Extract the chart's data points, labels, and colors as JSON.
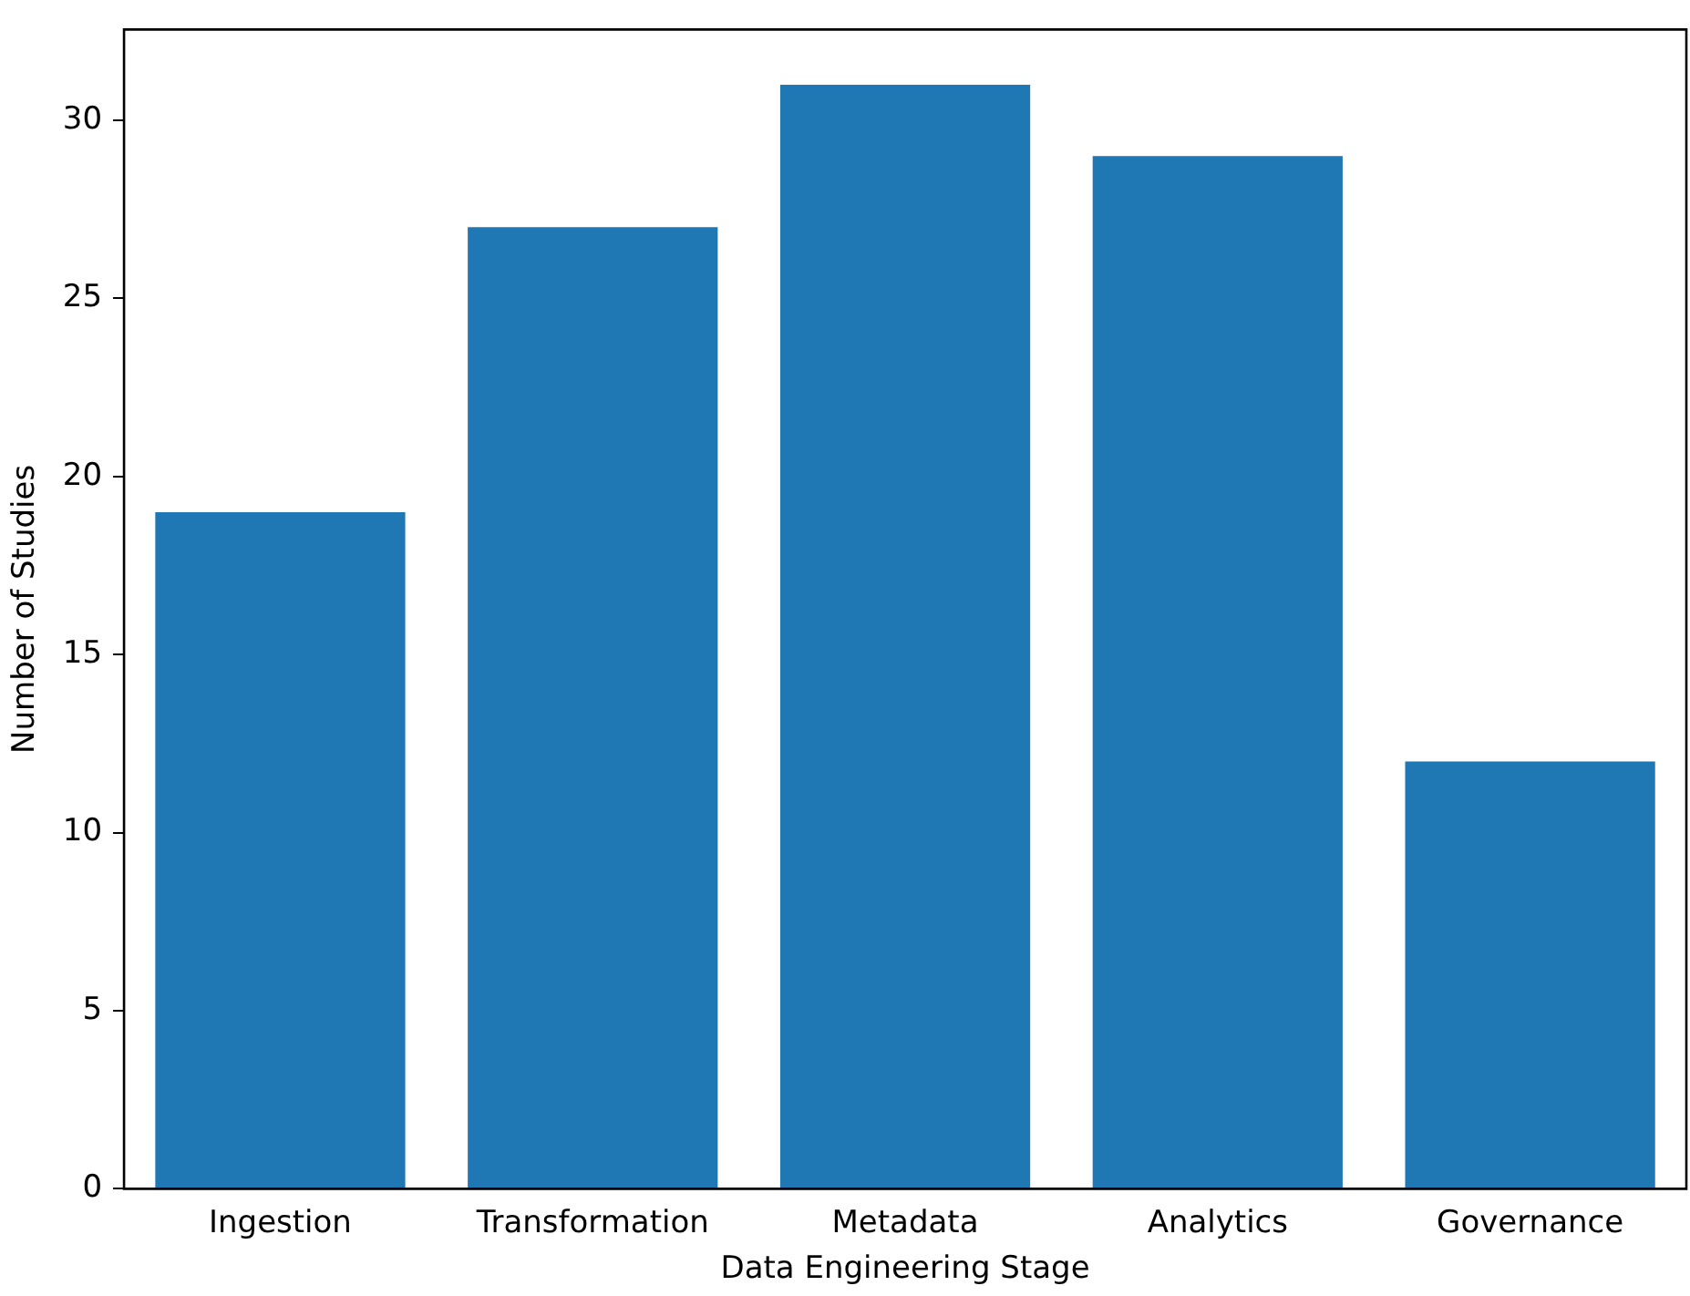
{
  "chart_data": {
    "type": "bar",
    "xlabel": "Data Engineering Stage",
    "ylabel": "Number of Studies",
    "categories": [
      "Ingestion",
      "Transformation",
      "Metadata",
      "Analytics",
      "Governance"
    ],
    "values": [
      19,
      27,
      31,
      29,
      12
    ],
    "color": "#1f77b4",
    "ylim": [
      0,
      32.55
    ],
    "yticks": [
      0,
      5,
      10,
      15,
      20,
      25,
      30
    ],
    "grid": false,
    "legend": false
  }
}
